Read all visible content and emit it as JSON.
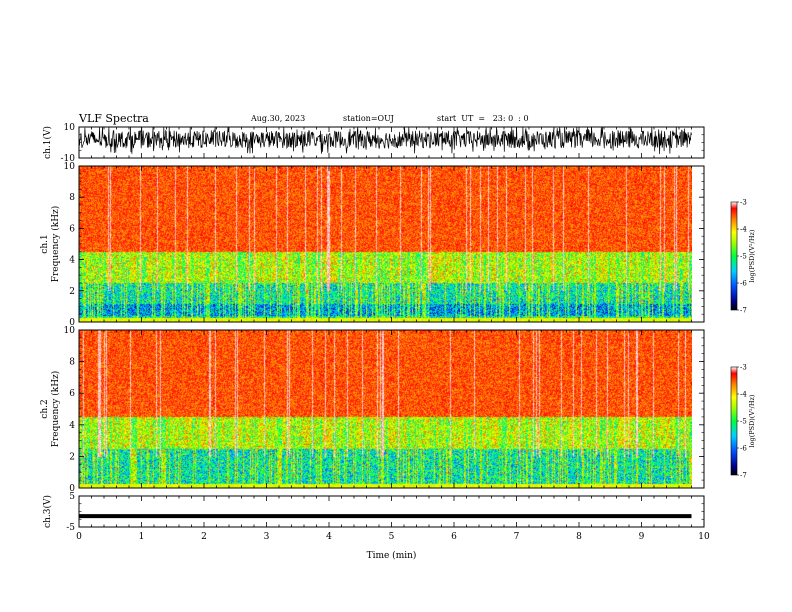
{
  "header": {
    "title": "VLF Spectra",
    "date": "Aug.30, 2023",
    "station": "station=OUJ",
    "start": "start  UT  =   23: 0  : 0"
  },
  "chart_data": [
    {
      "type": "line",
      "name": "ch1-waveform",
      "ylabel": "ch.1(V)",
      "ylim": [
        -10,
        10
      ],
      "yticks": [
        "10",
        "-10"
      ],
      "xlim": [
        0,
        10
      ],
      "noise_amplitude": 9.5,
      "baseline": 2.0
    },
    {
      "type": "heatmap",
      "name": "ch1-spectrogram",
      "ylabel_top": "ch.1",
      "ylabel": "Frequency  (kHz)",
      "ylim": [
        0,
        10
      ],
      "yticks": [
        "0",
        "2",
        "4",
        "6",
        "8",
        "10"
      ],
      "xlim": [
        0,
        10
      ],
      "data_end_min": 9.8,
      "colorbar": {
        "label": "log(PSD)(V²/Hz)",
        "range": [
          -7,
          -3
        ],
        "ticks": [
          "-3",
          "-4",
          "-5",
          "-6",
          "-7"
        ]
      }
    },
    {
      "type": "heatmap",
      "name": "ch2-spectrogram",
      "ylabel_top": "ch.2",
      "ylabel": "Frequency  (kHz)",
      "ylim": [
        0,
        10
      ],
      "yticks": [
        "0",
        "2",
        "4",
        "6",
        "8",
        "10"
      ],
      "xlim": [
        0,
        10
      ],
      "data_end_min": 9.8,
      "colorbar": {
        "label": "log(PSD)(V²/Hz)",
        "range": [
          -7,
          -3
        ],
        "ticks": [
          "-3",
          "-4",
          "-5",
          "-6",
          "-7"
        ]
      }
    },
    {
      "type": "line",
      "name": "ch3-waveform",
      "ylabel": "ch.3(V)",
      "ylim": [
        -5,
        5
      ],
      "yticks": [
        "5",
        "-5"
      ],
      "xlim": [
        0,
        10
      ],
      "level": -1.5,
      "xlabel": "Time  (min)",
      "xticks": [
        "0",
        "1",
        "2",
        "3",
        "4",
        "5",
        "6",
        "7",
        "8",
        "9",
        "10"
      ]
    }
  ],
  "colors": {
    "axis": "#000000",
    "low": "#00008b",
    "high": "#ff0000",
    "white": "#ffffff"
  }
}
